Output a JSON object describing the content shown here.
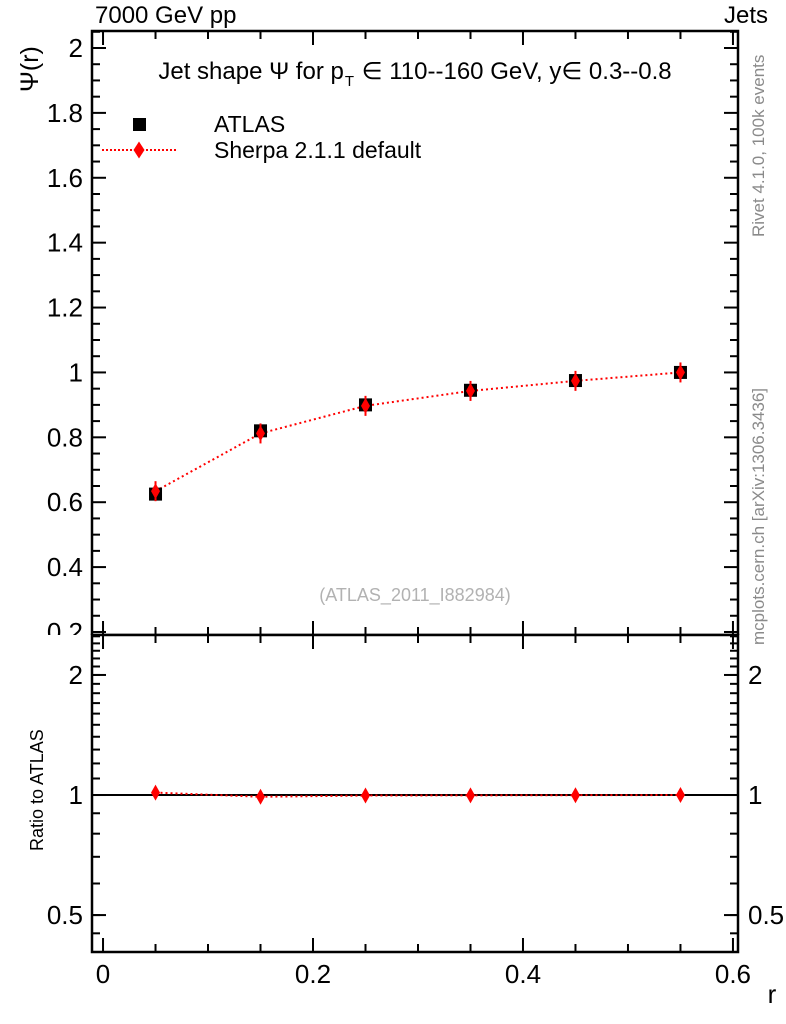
{
  "header": {
    "left": "7000 GeV pp",
    "right": "Jets"
  },
  "title_display": {
    "part1": "Jet shape Ψ for p",
    "sub": "T",
    "part2": " ∈ 110--160 GeV, y∈ 0.3--0.8"
  },
  "side_notes": {
    "top_right": "Rivet 4.1.0,  100k events",
    "bottom_right": "mcplots.cern.ch [arXiv:1306.3436]"
  },
  "watermark": "(ATLAS_2011_I882984)",
  "colors": {
    "atlas": "#000000",
    "sherpa": "#ff0000",
    "note_gray": "#8a8a8a",
    "watermark_gray": "#b2b2b2",
    "frame": "#000000"
  },
  "chart_data": {
    "type": "line",
    "title": "Jet shape Ψ for p_T ∈ 110--160 GeV, y∈ 0.3--0.8",
    "xlabel": "r",
    "ylabel": "Ψ(r)",
    "grid": false,
    "legend_position": "top-left",
    "xlim": [
      -0.0105,
      0.6048
    ],
    "ylim": [
      0.1907,
      2.0524
    ],
    "x_major_ticks": [
      0,
      0.2,
      0.4,
      0.6
    ],
    "x_minor_step": 0.05,
    "y_major_step": 0.2,
    "y_minor_step": 0.05,
    "x": [
      0.05,
      0.15,
      0.25,
      0.35,
      0.45,
      0.55
    ],
    "series": [
      {
        "name": "ATLAS",
        "marker": "filled-square",
        "color": "#000000",
        "values": [
          0.625,
          0.82,
          0.9,
          0.945,
          0.975,
          1.0
        ]
      },
      {
        "name": "Sherpa 2.1.1 default",
        "marker": "filled-diamond",
        "color": "#ff0000",
        "line_style": "dotted",
        "values": [
          0.634,
          0.812,
          0.897,
          0.943,
          0.974,
          1.0
        ]
      }
    ],
    "ratio_panel": {
      "ylabel": "Ratio to ATLAS",
      "scale": "log",
      "ylim": [
        0.404,
        2.519
      ],
      "labeled_ticks": [
        0.5,
        1,
        2
      ],
      "minor_ticks": [
        0.45,
        0.5,
        0.6,
        0.7,
        0.8,
        0.9,
        1,
        1.1,
        1.2,
        1.3,
        1.4,
        1.5,
        1.6,
        1.7,
        1.8,
        1.9,
        2,
        2.1,
        2.2,
        2.3,
        2.4,
        2.5
      ],
      "reference_line": 1,
      "values": [
        1.014,
        0.99,
        0.997,
        0.998,
        0.999,
        1.0
      ]
    }
  }
}
